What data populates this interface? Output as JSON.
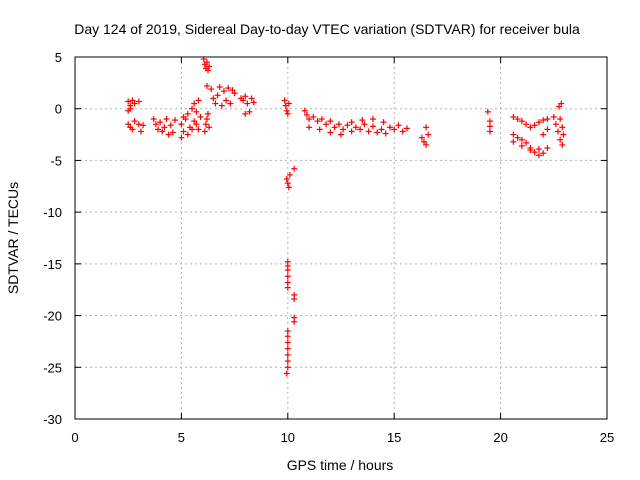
{
  "chart_data": {
    "type": "scatter",
    "title": "Day 124 of 2019, Sidereal Day-to-day VTEC variation (SDTVAR) for receiver bula",
    "xlabel": "GPS time / hours",
    "ylabel": "SDTVAR / TECUs",
    "xlim": [
      0,
      25
    ],
    "ylim": [
      -30,
      5
    ],
    "xticks": [
      0,
      5,
      10,
      15,
      20,
      25
    ],
    "yticks": [
      5,
      0,
      -5,
      -10,
      -15,
      -20,
      -25,
      -30
    ],
    "grid": true,
    "marker": "+",
    "color": "#ff0000",
    "series": [
      {
        "name": "SDTVAR",
        "points": [
          [
            2.5,
            0.7
          ],
          [
            2.6,
            0.3
          ],
          [
            2.7,
            0.8
          ],
          [
            2.5,
            -0.2
          ],
          [
            2.6,
            0.0
          ],
          [
            2.8,
            0.5
          ],
          [
            3.0,
            0.7
          ],
          [
            2.5,
            -1.5
          ],
          [
            2.6,
            -1.8
          ],
          [
            2.7,
            -2.0
          ],
          [
            2.8,
            -1.2
          ],
          [
            3.0,
            -1.5
          ],
          [
            3.1,
            -2.2
          ],
          [
            3.2,
            -1.6
          ],
          [
            3.7,
            -1.0
          ],
          [
            3.8,
            -1.5
          ],
          [
            3.9,
            -2.0
          ],
          [
            4.0,
            -1.3
          ],
          [
            4.1,
            -2.2
          ],
          [
            4.2,
            -1.8
          ],
          [
            4.3,
            -1.0
          ],
          [
            4.4,
            -2.5
          ],
          [
            4.5,
            -1.6
          ],
          [
            4.6,
            -2.3
          ],
          [
            4.7,
            -1.1
          ],
          [
            5.0,
            -2.8
          ],
          [
            5.0,
            -1.5
          ],
          [
            5.1,
            -0.8
          ],
          [
            5.1,
            -2.2
          ],
          [
            5.2,
            -1.0
          ],
          [
            5.3,
            -2.5
          ],
          [
            5.3,
            -0.5
          ],
          [
            5.4,
            -1.8
          ],
          [
            5.5,
            0.0
          ],
          [
            5.5,
            -2.0
          ],
          [
            5.6,
            -1.2
          ],
          [
            5.6,
            0.5
          ],
          [
            5.7,
            -1.5
          ],
          [
            5.7,
            -0.3
          ],
          [
            5.8,
            0.8
          ],
          [
            5.8,
            -2.0
          ],
          [
            5.9,
            -0.8
          ],
          [
            6.1,
            -2.2
          ],
          [
            6.15,
            -1.5
          ],
          [
            6.2,
            -1.0
          ],
          [
            6.25,
            -0.5
          ],
          [
            6.3,
            -1.8
          ],
          [
            6.05,
            4.8
          ],
          [
            6.1,
            4.3
          ],
          [
            6.15,
            3.9
          ],
          [
            6.2,
            4.5
          ],
          [
            6.25,
            3.7
          ],
          [
            6.3,
            4.1
          ],
          [
            6.2,
            2.2
          ],
          [
            6.4,
            1.9
          ],
          [
            6.5,
            1.0
          ],
          [
            6.6,
            0.5
          ],
          [
            6.7,
            1.3
          ],
          [
            6.8,
            2.1
          ],
          [
            6.9,
            0.3
          ],
          [
            7.0,
            1.7
          ],
          [
            7.1,
            0.8
          ],
          [
            7.2,
            2.0
          ],
          [
            7.3,
            0.5
          ],
          [
            7.4,
            1.8
          ],
          [
            7.5,
            1.5
          ],
          [
            7.8,
            1.0
          ],
          [
            7.9,
            0.8
          ],
          [
            8.0,
            -0.5
          ],
          [
            8.0,
            1.2
          ],
          [
            8.1,
            0.5
          ],
          [
            8.2,
            -0.3
          ],
          [
            8.3,
            1.0
          ],
          [
            8.4,
            0.6
          ],
          [
            9.85,
            0.8
          ],
          [
            9.9,
            0.3
          ],
          [
            9.95,
            -0.2
          ],
          [
            10.0,
            -0.5
          ],
          [
            10.05,
            0.5
          ],
          [
            9.95,
            -6.8
          ],
          [
            10.0,
            -7.2
          ],
          [
            10.05,
            -7.6
          ],
          [
            10.1,
            -6.4
          ],
          [
            10.3,
            -5.8
          ],
          [
            10.0,
            -14.8
          ],
          [
            10.0,
            -15.2
          ],
          [
            10.0,
            -15.6
          ],
          [
            10.0,
            -16.2
          ],
          [
            10.0,
            -16.8
          ],
          [
            10.0,
            -17.3
          ],
          [
            10.3,
            -18.0
          ],
          [
            10.3,
            -18.4
          ],
          [
            10.3,
            -20.2
          ],
          [
            10.3,
            -20.6
          ],
          [
            10.0,
            -21.5
          ],
          [
            10.0,
            -22.0
          ],
          [
            10.0,
            -22.6
          ],
          [
            10.0,
            -23.2
          ],
          [
            10.0,
            -23.8
          ],
          [
            10.0,
            -24.4
          ],
          [
            10.0,
            -25.0
          ],
          [
            9.95,
            -25.6
          ],
          [
            10.8,
            -0.2
          ],
          [
            10.9,
            -0.6
          ],
          [
            11.0,
            -1.0
          ],
          [
            11.2,
            -0.8
          ],
          [
            11.4,
            -1.2
          ],
          [
            11.6,
            -1.0
          ],
          [
            11.8,
            -1.5
          ],
          [
            12.0,
            -1.2
          ],
          [
            12.2,
            -1.8
          ],
          [
            12.4,
            -1.5
          ],
          [
            12.6,
            -2.0
          ],
          [
            12.8,
            -1.6
          ],
          [
            13.0,
            -2.2
          ],
          [
            13.2,
            -1.8
          ],
          [
            13.4,
            -2.0
          ],
          [
            13.6,
            -1.5
          ],
          [
            13.8,
            -2.2
          ],
          [
            14.0,
            -1.7
          ],
          [
            14.2,
            -2.3
          ],
          [
            14.4,
            -2.0
          ],
          [
            14.6,
            -2.4
          ],
          [
            11.0,
            -1.8
          ],
          [
            11.5,
            -2.0
          ],
          [
            12.0,
            -2.3
          ],
          [
            12.5,
            -2.5
          ],
          [
            13.0,
            -1.3
          ],
          [
            13.5,
            -1.1
          ],
          [
            14.0,
            -1.0
          ],
          [
            14.5,
            -1.3
          ],
          [
            14.8,
            -1.8
          ],
          [
            15.0,
            -2.0
          ],
          [
            15.2,
            -1.6
          ],
          [
            15.4,
            -2.2
          ],
          [
            15.6,
            -1.9
          ],
          [
            16.3,
            -2.8
          ],
          [
            16.4,
            -3.2
          ],
          [
            16.5,
            -1.8
          ],
          [
            16.5,
            -3.5
          ],
          [
            16.6,
            -2.5
          ],
          [
            19.4,
            -0.3
          ],
          [
            19.5,
            -1.2
          ],
          [
            19.5,
            -1.7
          ],
          [
            19.5,
            -2.2
          ],
          [
            20.6,
            -0.8
          ],
          [
            20.8,
            -1.0
          ],
          [
            21.0,
            -1.2
          ],
          [
            21.2,
            -1.5
          ],
          [
            21.4,
            -1.8
          ],
          [
            21.6,
            -1.6
          ],
          [
            21.8,
            -1.3
          ],
          [
            22.0,
            -1.1
          ],
          [
            22.2,
            -1.0
          ],
          [
            20.6,
            -2.5
          ],
          [
            20.8,
            -2.8
          ],
          [
            21.0,
            -3.0
          ],
          [
            21.2,
            -3.3
          ],
          [
            21.4,
            -3.8
          ],
          [
            21.6,
            -4.2
          ],
          [
            21.8,
            -4.5
          ],
          [
            22.0,
            -4.3
          ],
          [
            22.2,
            -3.8
          ],
          [
            20.6,
            -3.2
          ],
          [
            21.0,
            -3.6
          ],
          [
            21.4,
            -4.0
          ],
          [
            21.8,
            -3.9
          ],
          [
            22.0,
            -2.5
          ],
          [
            22.2,
            -2.0
          ],
          [
            22.5,
            -0.8
          ],
          [
            22.6,
            -1.5
          ],
          [
            22.7,
            -2.2
          ],
          [
            22.75,
            0.2
          ],
          [
            22.8,
            -1.0
          ],
          [
            22.8,
            -3.0
          ],
          [
            22.85,
            0.5
          ],
          [
            22.9,
            -1.8
          ],
          [
            22.9,
            -3.5
          ],
          [
            22.95,
            -2.5
          ]
        ]
      }
    ]
  }
}
